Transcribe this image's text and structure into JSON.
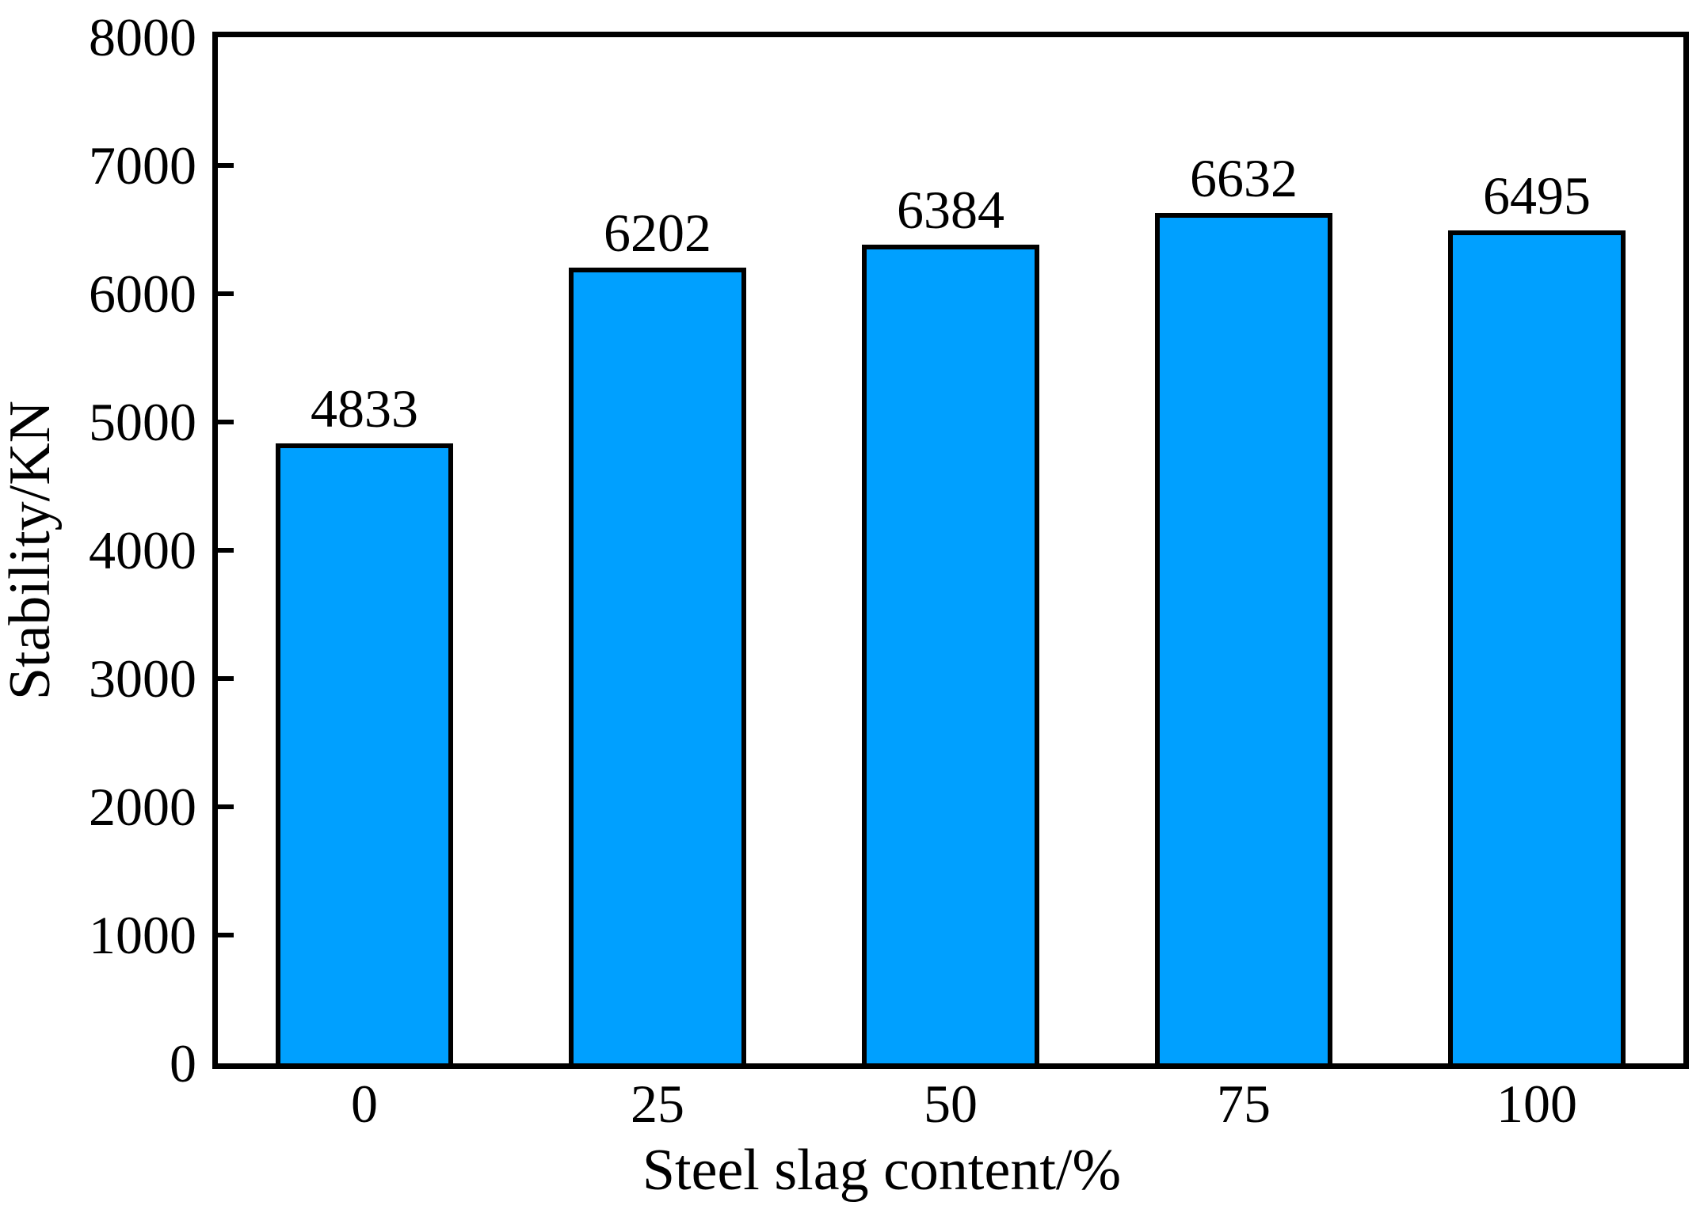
{
  "figure": {
    "background_color": "#ffffff",
    "text_color": "#000000"
  },
  "chart_data": {
    "type": "bar",
    "title": "",
    "xlabel": "Steel slag content/%",
    "ylabel": "Stability/KN",
    "categories": [
      "0",
      "25",
      "50",
      "75",
      "100"
    ],
    "values": [
      4833,
      6202,
      6384,
      6632,
      6495
    ],
    "value_labels": [
      "4833",
      "6202",
      "6384",
      "6632",
      "6495"
    ],
    "ylim": [
      0,
      8000
    ],
    "y_tick_step": 1000,
    "y_ticks": [
      0,
      1000,
      2000,
      3000,
      4000,
      5000,
      6000,
      7000,
      8000
    ],
    "y_tick_labels": [
      "0",
      "1000",
      "2000",
      "3000",
      "4000",
      "5000",
      "6000",
      "7000",
      "8000"
    ],
    "grid": false,
    "legend_position": "none",
    "bar_fill_color": "#00A0FF",
    "bar_border_color": "#000000",
    "axis_color": "#000000",
    "tick_direction": "in"
  }
}
